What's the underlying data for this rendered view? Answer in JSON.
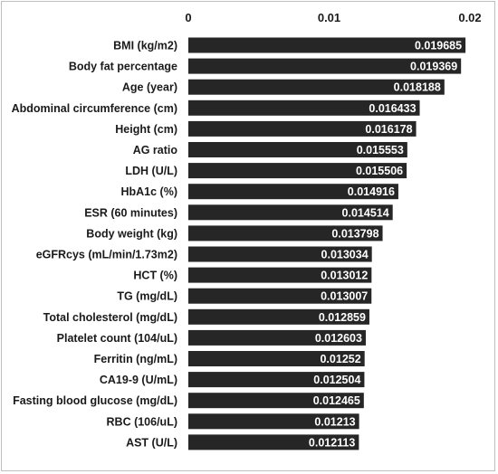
{
  "chart_data": {
    "type": "bar",
    "orientation": "horizontal",
    "title": "",
    "xlabel": "",
    "ylabel": "",
    "xlim": [
      0,
      0.02
    ],
    "x_ticks": [
      0,
      0.01,
      0.02
    ],
    "x_tick_labels": [
      "0",
      "0.01",
      "0.02"
    ],
    "axis_position": "top",
    "grid": false,
    "bar_color": "#262626",
    "value_label_color": "#ffffff",
    "categories": [
      "BMI (kg/m2)",
      "Body fat percentage",
      "Age (year)",
      "Abdominal circumference (cm)",
      "Height (cm)",
      "AG ratio",
      "LDH (U/L)",
      "HbA1c (%)",
      "ESR (60 minutes)",
      "Body weight (kg)",
      "eGFRcys (mL/min/1.73m2)",
      "HCT (%)",
      "TG (mg/dL)",
      "Total cholesterol (mg/dL)",
      "Platelet count (104/uL)",
      "Ferritin (ng/mL)",
      "CA19-9 (U/mL)",
      "Fasting blood glucose (mg/dL)",
      "RBC (106/uL)",
      "AST (U/L)"
    ],
    "values": [
      0.019685,
      0.019369,
      0.018188,
      0.016433,
      0.016178,
      0.015553,
      0.015506,
      0.014916,
      0.014514,
      0.013798,
      0.013034,
      0.013012,
      0.013007,
      0.012859,
      0.012603,
      0.01252,
      0.012504,
      0.012465,
      0.01213,
      0.012113
    ],
    "value_labels": [
      "0.019685",
      "0.019369",
      "0.018188",
      "0.016433",
      "0.016178",
      "0.015553",
      "0.015506",
      "0.014916",
      "0.014514",
      "0.013798",
      "0.013034",
      "0.013012",
      "0.013007",
      "0.012859",
      "0.012603",
      "0.01252",
      "0.012504",
      "0.012465",
      "0.01213",
      "0.012113"
    ]
  }
}
